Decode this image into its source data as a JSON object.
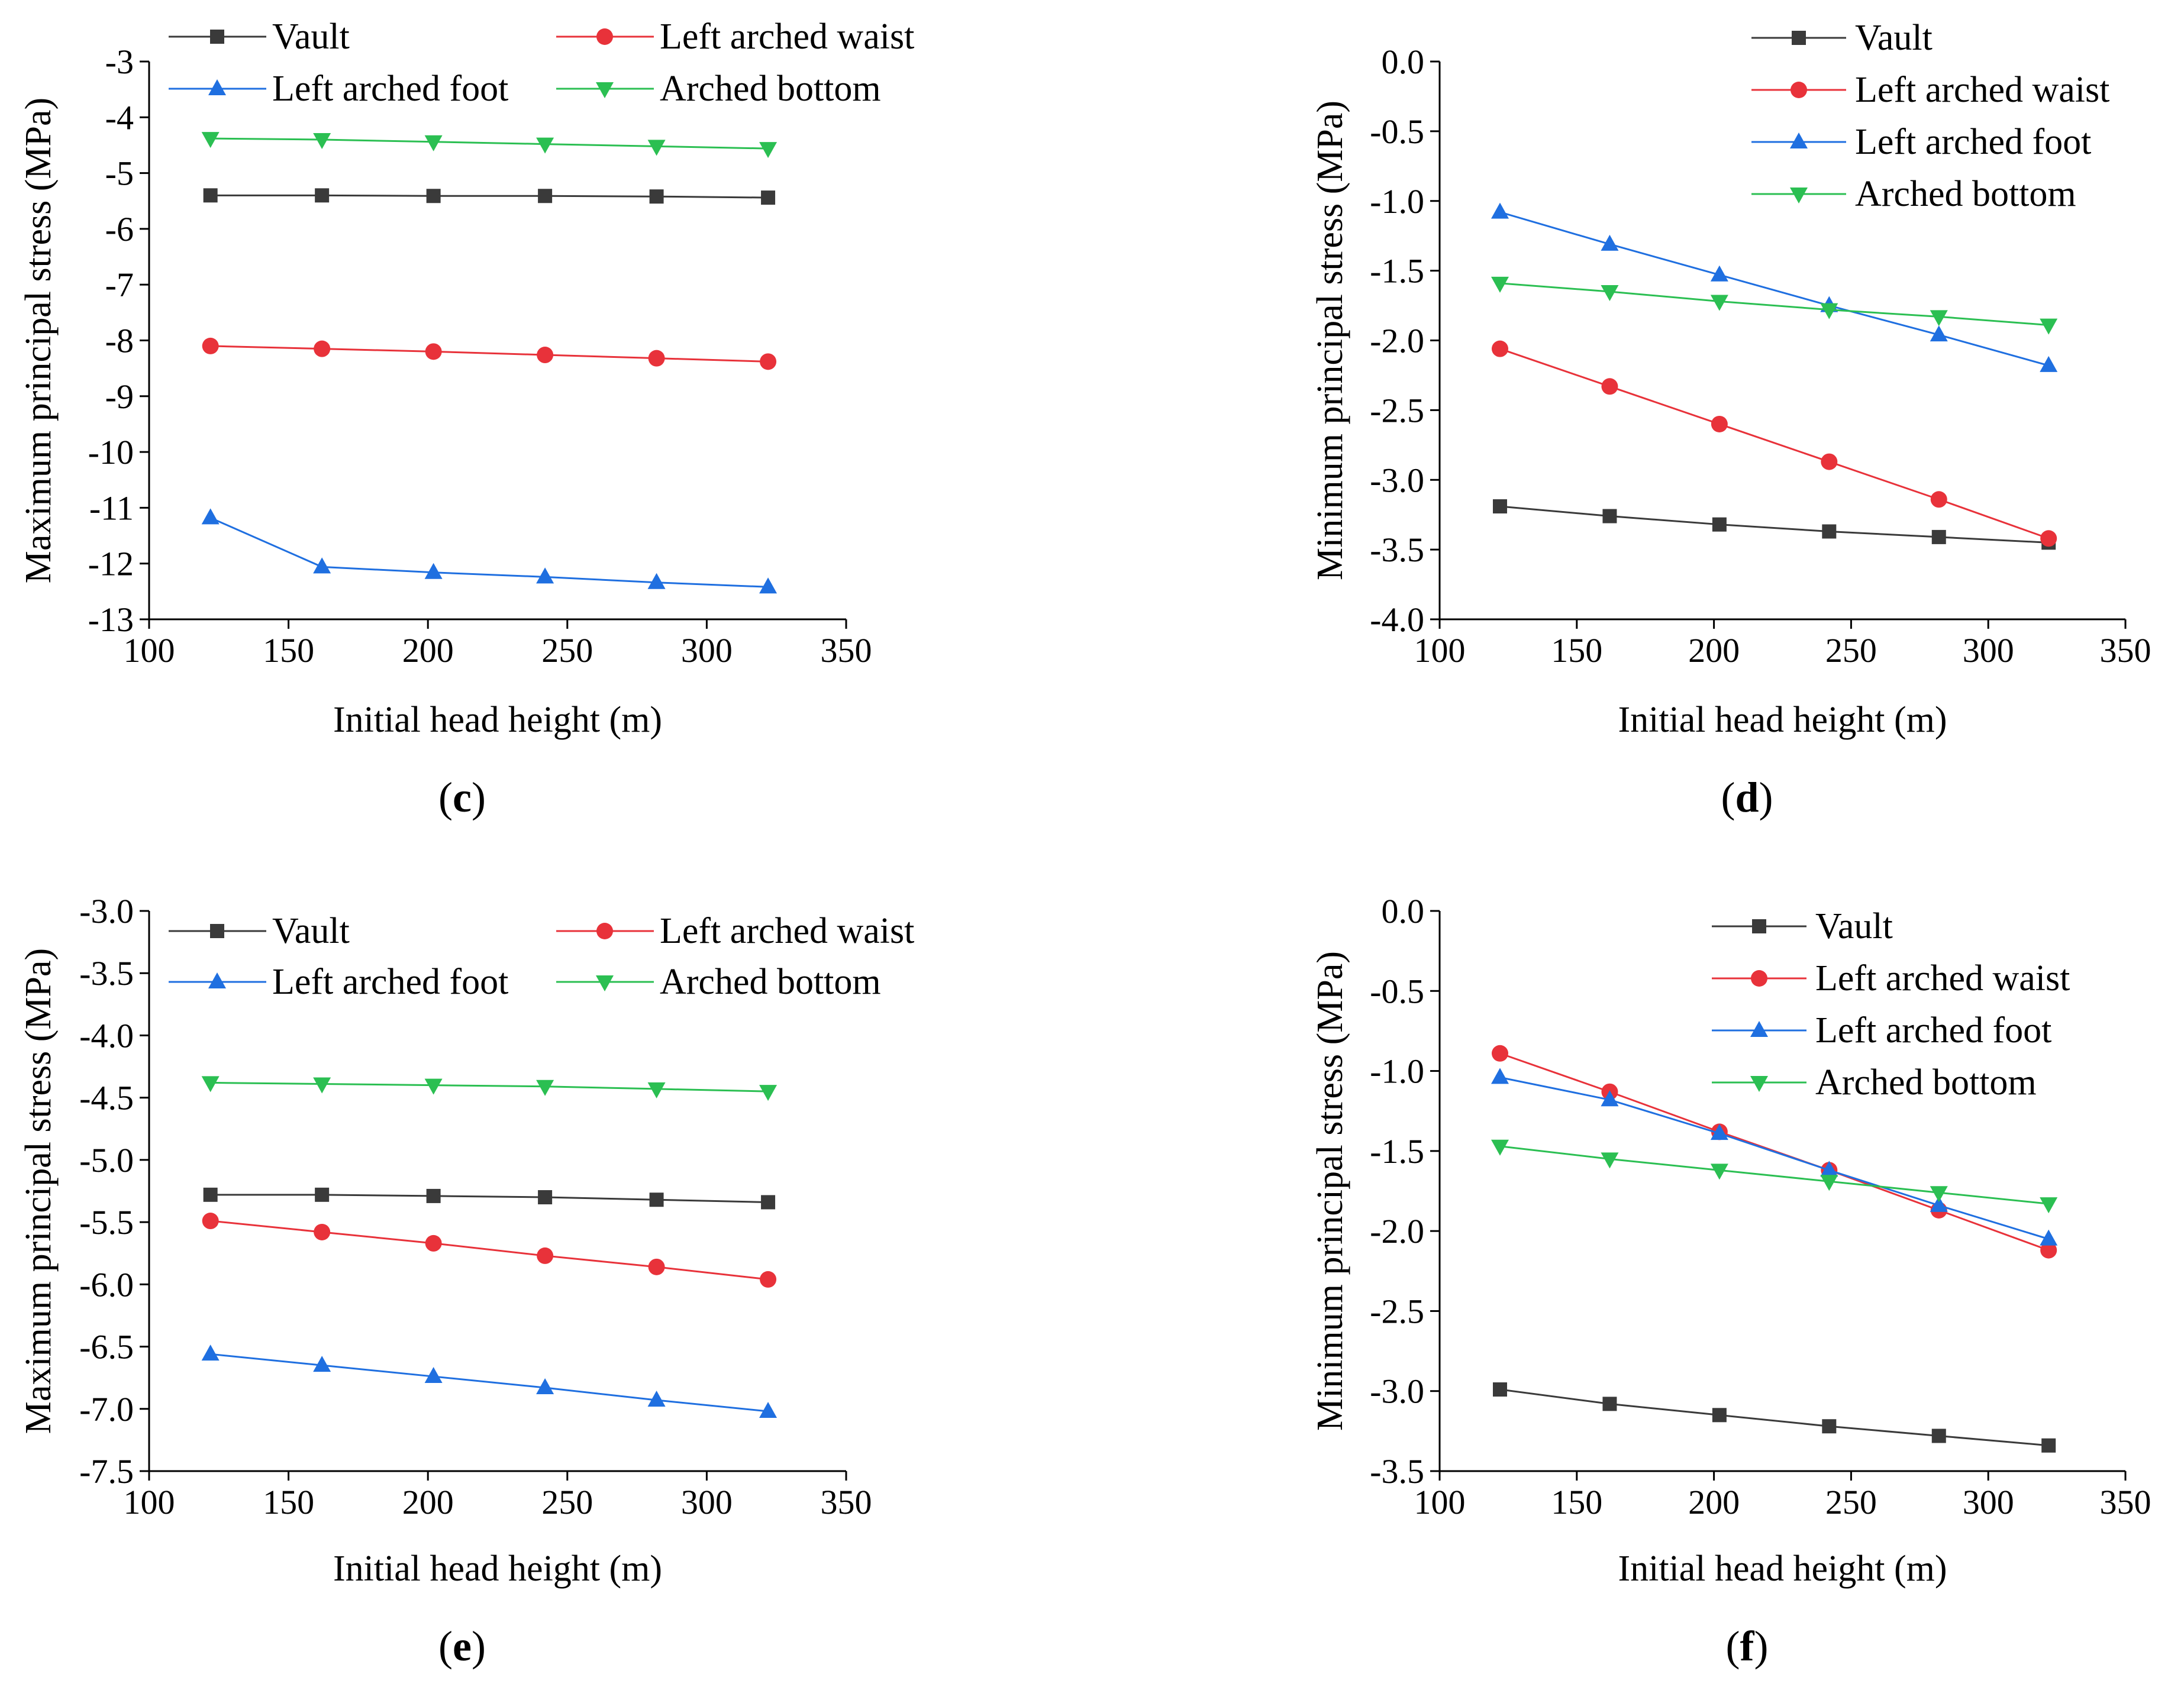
{
  "colors": {
    "Vault": "#3a3a3a",
    "Left arched waist": "#e8323a",
    "Left arched foot": "#1f6fe0",
    "Arched bottom": "#2bbf52"
  },
  "chart_data": [
    {
      "type": "line",
      "panel_label": "c",
      "xlabel": "Initial head height (m)",
      "ylabel": "Maximum principal stress (MPa)",
      "xlim": [
        100,
        350
      ],
      "ylim": [
        -13,
        -3
      ],
      "xticks": [
        100,
        150,
        200,
        250,
        300,
        350
      ],
      "yticks": [
        -3,
        -4,
        -5,
        -6,
        -7,
        -8,
        -9,
        -10,
        -11,
        -12,
        -13
      ],
      "ytick_labels": [
        "-3",
        "-4",
        "-5",
        "-6",
        "-7",
        "-8",
        "-9",
        "-10",
        "-11",
        "-12",
        "-13"
      ],
      "legend_position": "top",
      "legend_columns": 2,
      "x": [
        122,
        162,
        202,
        242,
        282,
        322
      ],
      "series": [
        {
          "name": "Vault",
          "marker": "square",
          "values": [
            -5.4,
            -5.4,
            -5.41,
            -5.41,
            -5.42,
            -5.44
          ]
        },
        {
          "name": "Left arched waist",
          "marker": "circle",
          "values": [
            -8.1,
            -8.15,
            -8.2,
            -8.26,
            -8.32,
            -8.38
          ]
        },
        {
          "name": "Left arched foot",
          "marker": "triangle-up",
          "values": [
            -11.18,
            -12.06,
            -12.16,
            -12.24,
            -12.34,
            -12.42
          ]
        },
        {
          "name": "Arched bottom",
          "marker": "triangle-down",
          "values": [
            -4.38,
            -4.4,
            -4.44,
            -4.48,
            -4.52,
            -4.56
          ]
        }
      ]
    },
    {
      "type": "line",
      "panel_label": "d",
      "xlabel": "Initial head height (m)",
      "ylabel": "Minimum principal stress (MPa)",
      "xlim": [
        100,
        350
      ],
      "ylim": [
        -4.0,
        0.0
      ],
      "xticks": [
        100,
        150,
        200,
        250,
        300,
        350
      ],
      "yticks": [
        0,
        -0.5,
        -1.0,
        -1.5,
        -2.0,
        -2.5,
        -3.0,
        -3.5,
        -4.0
      ],
      "ytick_labels": [
        "0.0",
        "-0.5",
        "-1.0",
        "-1.5",
        "-2.0",
        "-2.5",
        "-3.0",
        "-3.5",
        "-4.0"
      ],
      "legend_position": "top-right",
      "legend_columns": 1,
      "x": [
        122,
        162,
        202,
        242,
        282,
        322
      ],
      "series": [
        {
          "name": "Vault",
          "marker": "square",
          "values": [
            -3.19,
            -3.26,
            -3.32,
            -3.37,
            -3.41,
            -3.45
          ]
        },
        {
          "name": "Left arched waist",
          "marker": "circle",
          "values": [
            -2.06,
            -2.33,
            -2.6,
            -2.87,
            -3.14,
            -3.42
          ]
        },
        {
          "name": "Left arched foot",
          "marker": "triangle-up",
          "values": [
            -1.08,
            -1.31,
            -1.53,
            -1.75,
            -1.96,
            -2.18
          ]
        },
        {
          "name": "Arched bottom",
          "marker": "triangle-down",
          "values": [
            -1.59,
            -1.65,
            -1.72,
            -1.78,
            -1.83,
            -1.89
          ]
        }
      ]
    },
    {
      "type": "line",
      "panel_label": "e",
      "xlabel": "Initial head height (m)",
      "ylabel": "Maximum principal stress (MPa)",
      "xlim": [
        100,
        350
      ],
      "ylim": [
        -7.5,
        -3.0
      ],
      "xticks": [
        100,
        150,
        200,
        250,
        300,
        350
      ],
      "yticks": [
        -3.0,
        -3.5,
        -4.0,
        -4.5,
        -5.0,
        -5.5,
        -6.0,
        -6.5,
        -7.0,
        -7.5
      ],
      "ytick_labels": [
        "-3.0",
        "-3.5",
        "-4.0",
        "-4.5",
        "-5.0",
        "-5.5",
        "-6.0",
        "-6.5",
        "-7.0",
        "-7.5"
      ],
      "legend_position": "top",
      "legend_columns": 2,
      "x": [
        122,
        162,
        202,
        242,
        282,
        322
      ],
      "series": [
        {
          "name": "Vault",
          "marker": "square",
          "values": [
            -5.28,
            -5.28,
            -5.29,
            -5.3,
            -5.32,
            -5.34
          ]
        },
        {
          "name": "Left arched waist",
          "marker": "circle",
          "values": [
            -5.49,
            -5.58,
            -5.67,
            -5.77,
            -5.86,
            -5.96
          ]
        },
        {
          "name": "Left arched foot",
          "marker": "triangle-up",
          "values": [
            -6.56,
            -6.65,
            -6.74,
            -6.83,
            -6.93,
            -7.02
          ]
        },
        {
          "name": "Arched bottom",
          "marker": "triangle-down",
          "values": [
            -4.38,
            -4.39,
            -4.4,
            -4.41,
            -4.43,
            -4.45
          ]
        }
      ]
    },
    {
      "type": "line",
      "panel_label": "f",
      "xlabel": "Initial head height (m)",
      "ylabel": "Minimum principal stress (MPa)",
      "xlim": [
        100,
        350
      ],
      "ylim": [
        -3.5,
        0.0
      ],
      "xticks": [
        100,
        150,
        200,
        250,
        300,
        350
      ],
      "yticks": [
        0,
        -0.5,
        -1.0,
        -1.5,
        -2.0,
        -2.5,
        -3.0,
        -3.5
      ],
      "ytick_labels": [
        "0.0",
        "-0.5",
        "-1.0",
        "-1.5",
        "-2.0",
        "-2.5",
        "-3.0",
        "-3.5"
      ],
      "legend_position": "top-right",
      "legend_columns": 1,
      "x": [
        122,
        162,
        202,
        242,
        282,
        322
      ],
      "series": [
        {
          "name": "Vault",
          "marker": "square",
          "values": [
            -2.99,
            -3.08,
            -3.15,
            -3.22,
            -3.28,
            -3.34
          ]
        },
        {
          "name": "Left arched waist",
          "marker": "circle",
          "values": [
            -0.89,
            -1.13,
            -1.38,
            -1.62,
            -1.87,
            -2.12
          ]
        },
        {
          "name": "Left arched foot",
          "marker": "triangle-up",
          "values": [
            -1.04,
            -1.18,
            -1.39,
            -1.62,
            -1.84,
            -2.05
          ]
        },
        {
          "name": "Arched bottom",
          "marker": "triangle-down",
          "values": [
            -1.47,
            -1.55,
            -1.62,
            -1.69,
            -1.76,
            -1.83
          ]
        }
      ]
    }
  ]
}
